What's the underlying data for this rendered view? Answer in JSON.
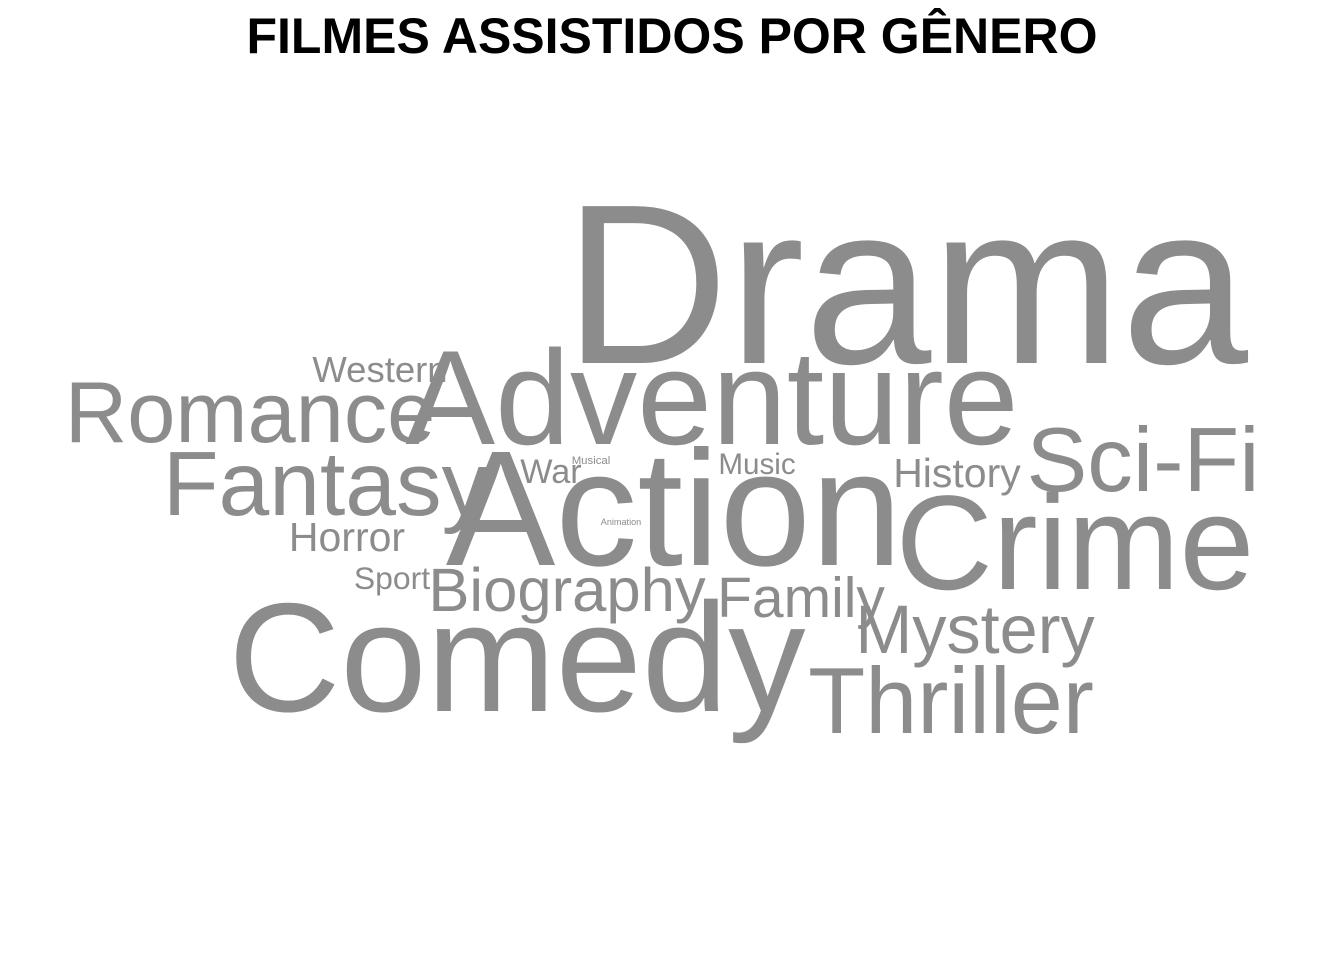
{
  "chart_data": {
    "type": "wordcloud",
    "title": "FILMES ASSISTIDOS POR GÊNERO",
    "color": "#8c8c8c",
    "words": [
      {
        "text": "Drama",
        "weight": 100
      },
      {
        "text": "Action",
        "weight": 72
      },
      {
        "text": "Comedy",
        "weight": 68
      },
      {
        "text": "Adventure",
        "weight": 59
      },
      {
        "text": "Crime",
        "weight": 59
      },
      {
        "text": "Thriller",
        "weight": 41
      },
      {
        "text": "Sci-Fi",
        "weight": 40
      },
      {
        "text": "Fantasy",
        "weight": 40
      },
      {
        "text": "Romance",
        "weight": 38
      },
      {
        "text": "Mystery",
        "weight": 30
      },
      {
        "text": "Biography",
        "weight": 27
      },
      {
        "text": "Family",
        "weight": 25
      },
      {
        "text": "History",
        "weight": 18
      },
      {
        "text": "Horror",
        "weight": 18
      },
      {
        "text": "Western",
        "weight": 16
      },
      {
        "text": "War",
        "weight": 15
      },
      {
        "text": "Music",
        "weight": 13
      },
      {
        "text": "Sport",
        "weight": 14
      },
      {
        "text": "Musical",
        "weight": 5
      },
      {
        "text": "Animation",
        "weight": 4
      }
    ]
  }
}
